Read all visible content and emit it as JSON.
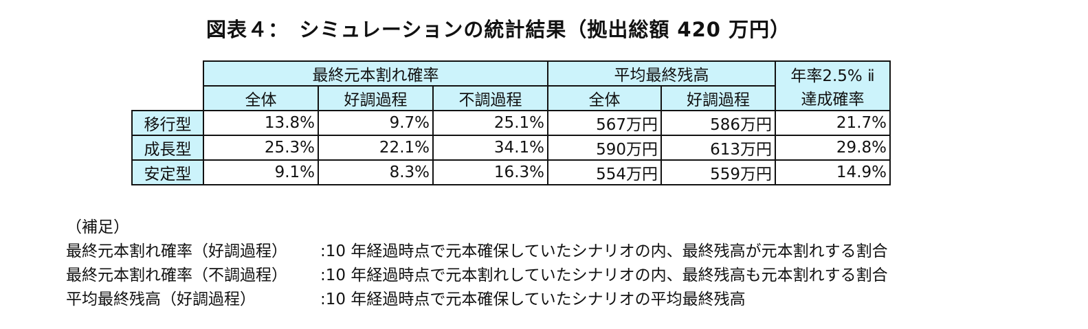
{
  "title": "図表４：　シミュレーションの統計結果（拠出総額 420 万円）",
  "table": {
    "group_headers": {
      "break": "最終元本割れ確率",
      "average": "平均最終残高",
      "target_line1": "年率2.5% ⅱ",
      "target_line2": "達成確率"
    },
    "sub_headers": [
      "全体",
      "好調過程",
      "不調過程",
      "全体",
      "好調過程"
    ],
    "rows": [
      {
        "label": "移行型",
        "cells": [
          "13.8%",
          "9.7%",
          "25.1%",
          "567万円",
          "586万円",
          "21.7%"
        ]
      },
      {
        "label": "成長型",
        "cells": [
          "25.3%",
          "22.1%",
          "34.1%",
          "590万円",
          "613万円",
          "29.8%"
        ]
      },
      {
        "label": "安定型",
        "cells": [
          "9.1%",
          "8.3%",
          "16.3%",
          "554万円",
          "559万円",
          "14.9%"
        ]
      }
    ]
  },
  "notes": {
    "heading": "（補足）",
    "items": [
      {
        "term": "最終元本割れ確率（好調過程）",
        "desc": ":10 年経過時点で元本確保していたシナリオの内、最終残高が元本割れする割合"
      },
      {
        "term": "最終元本割れ確率（不調過程）",
        "desc": ":10 年経過時点で元本割れしていたシナリオの内、最終残高も元本割れする割合"
      },
      {
        "term": "平均最終残高（好調過程）",
        "desc": ":10 年経過時点で元本確保していたシナリオの平均最終残高"
      }
    ]
  }
}
